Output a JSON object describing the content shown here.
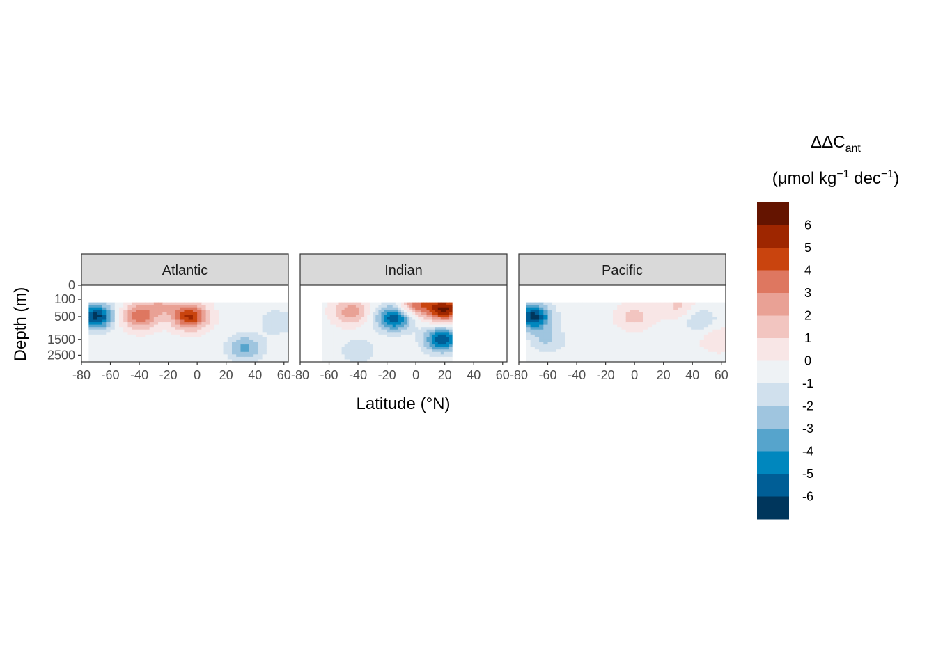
{
  "chart_data": {
    "type": "heatmap",
    "subtype": "filled-contour, faceted",
    "xlabel": "Latitude (°N)",
    "ylabel": "Depth (m)",
    "x_ticks": [
      -80,
      -60,
      -40,
      -20,
      0,
      20,
      40,
      60
    ],
    "xlim": [
      -80,
      63
    ],
    "y_ticks": [
      0,
      100,
      500,
      1500,
      2500
    ],
    "ylim": [
      0,
      3000
    ],
    "y_scale": "sqrt (reversed, depth increases downward)",
    "grid": false,
    "legend_placement": "right",
    "legend": {
      "title_main": "ΔΔC",
      "title_sub": "ant",
      "title_unit_parts": [
        "(μmol kg",
        "−1",
        " dec",
        "−1",
        ")"
      ],
      "breaks": [
        -6,
        -5,
        -4,
        -3,
        -2,
        -1,
        0,
        1,
        2,
        3,
        4,
        5,
        6
      ],
      "colors": [
        "#00365c",
        "#005e96",
        "#0087be",
        "#56a4cc",
        "#9fc5df",
        "#d0e0ed",
        "#eef2f5",
        "#f8e6e6",
        "#f2c5c0",
        "#e9a195",
        "#de7760",
        "#c9440e",
        "#9e2600",
        "#641400"
      ]
    },
    "panels": [
      {
        "name": "Atlantic",
        "lat_range": [
          -75,
          63
        ],
        "depth_range": [
          150,
          3000
        ],
        "features": [
          {
            "type": "positive",
            "lat": -40,
            "depth": 500,
            "value": 4
          },
          {
            "type": "positive",
            "lat": -5,
            "depth": 500,
            "value": 5.5
          },
          {
            "type": "positive",
            "lat": -25,
            "depth": 200,
            "value": 2
          },
          {
            "type": "negative",
            "lat": -70,
            "depth": 500,
            "value": -6
          },
          {
            "type": "negative",
            "lat": 33,
            "depth": 2000,
            "value": -3
          },
          {
            "type": "negative",
            "lat": 55,
            "depth": 700,
            "value": -1.5
          }
        ]
      },
      {
        "name": "Indian",
        "lat_range": [
          -65,
          25
        ],
        "depth_range": [
          150,
          3000
        ],
        "features": [
          {
            "type": "positive",
            "lat": 20,
            "depth": 300,
            "value": 6.5
          },
          {
            "type": "positive",
            "lat": 0,
            "depth": 180,
            "value": 4
          },
          {
            "type": "positive",
            "lat": -45,
            "depth": 350,
            "value": 3
          },
          {
            "type": "negative",
            "lat": -15,
            "depth": 550,
            "value": -5.5
          },
          {
            "type": "negative",
            "lat": 18,
            "depth": 1500,
            "value": -5.5
          },
          {
            "type": "negative",
            "lat": -40,
            "depth": 2200,
            "value": -1.5
          }
        ]
      },
      {
        "name": "Pacific",
        "lat_range": [
          -75,
          63
        ],
        "depth_range": [
          150,
          3000
        ],
        "features": [
          {
            "type": "negative",
            "lat": -70,
            "depth": 500,
            "value": -6
          },
          {
            "type": "negative",
            "lat": -60,
            "depth": 1500,
            "value": -1.8
          },
          {
            "type": "positive",
            "lat": 0,
            "depth": 500,
            "value": 1.8
          },
          {
            "type": "positive",
            "lat": 30,
            "depth": 250,
            "value": 1.6
          },
          {
            "type": "negative",
            "lat": 45,
            "depth": 600,
            "value": -1.6
          },
          {
            "type": "positive",
            "lat": 58,
            "depth": 1500,
            "value": 1.2
          }
        ]
      }
    ]
  }
}
